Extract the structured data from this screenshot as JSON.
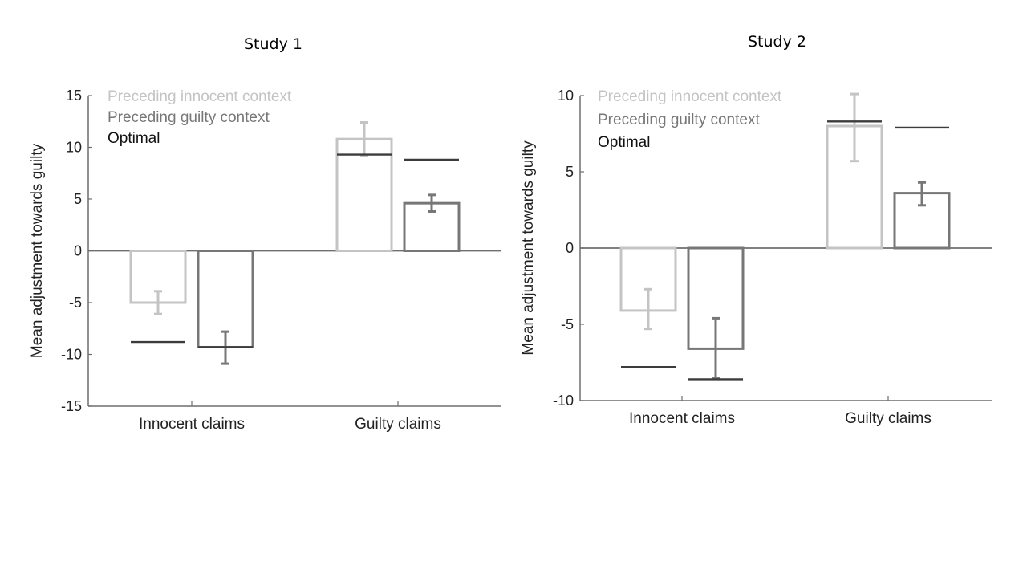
{
  "figure": {
    "panel_titles": [
      "Study 1",
      "Study 2"
    ],
    "colors": {
      "innocent_context": "#c4c4c4",
      "guilty_context": "#777777",
      "optimal": "#3c3c3c",
      "axis": "#6e6e6e",
      "text": "#222222"
    }
  },
  "chart_data": [
    {
      "type": "bar",
      "title": "Study 1",
      "ylabel": "Mean adjustment towards guilty",
      "xlabel": "",
      "categories": [
        "Innocent claims",
        "Guilty claims"
      ],
      "ylim": [
        -15,
        15
      ],
      "yticks": [
        -15,
        -10,
        -5,
        0,
        5,
        10,
        15
      ],
      "grid": false,
      "legend_position": "top-left",
      "series": [
        {
          "name": "Preceding innocent context",
          "values": [
            -5.0,
            10.8
          ],
          "error_low": [
            -6.1,
            9.2
          ],
          "error_high": [
            -3.9,
            12.4
          ]
        },
        {
          "name": "Preceding guilty context",
          "values": [
            -9.3,
            4.6
          ],
          "error_low": [
            -10.9,
            3.8
          ],
          "error_high": [
            -7.8,
            5.4
          ]
        }
      ],
      "optimal": {
        "name": "Optimal",
        "values": [
          [
            -8.8,
            -9.3
          ],
          [
            9.3,
            8.8
          ]
        ]
      }
    },
    {
      "type": "bar",
      "title": "Study 2",
      "ylabel": "Mean adjustment towards guilty",
      "xlabel": "",
      "categories": [
        "Innocent claims",
        "Guilty claims"
      ],
      "ylim": [
        -10,
        10
      ],
      "yticks": [
        -10,
        -5,
        0,
        5,
        10
      ],
      "grid": false,
      "legend_position": "top-left",
      "series": [
        {
          "name": "Preceding innocent context",
          "values": [
            -4.1,
            8.0
          ],
          "error_low": [
            -5.3,
            5.7
          ],
          "error_high": [
            -2.7,
            10.1
          ]
        },
        {
          "name": "Preceding guilty context",
          "values": [
            -6.6,
            3.6
          ],
          "error_low": [
            -8.5,
            2.8
          ],
          "error_high": [
            -4.6,
            4.3
          ]
        }
      ],
      "optimal": {
        "name": "Optimal",
        "values": [
          [
            -7.8,
            -8.6
          ],
          [
            8.3,
            7.9
          ]
        ]
      }
    }
  ]
}
